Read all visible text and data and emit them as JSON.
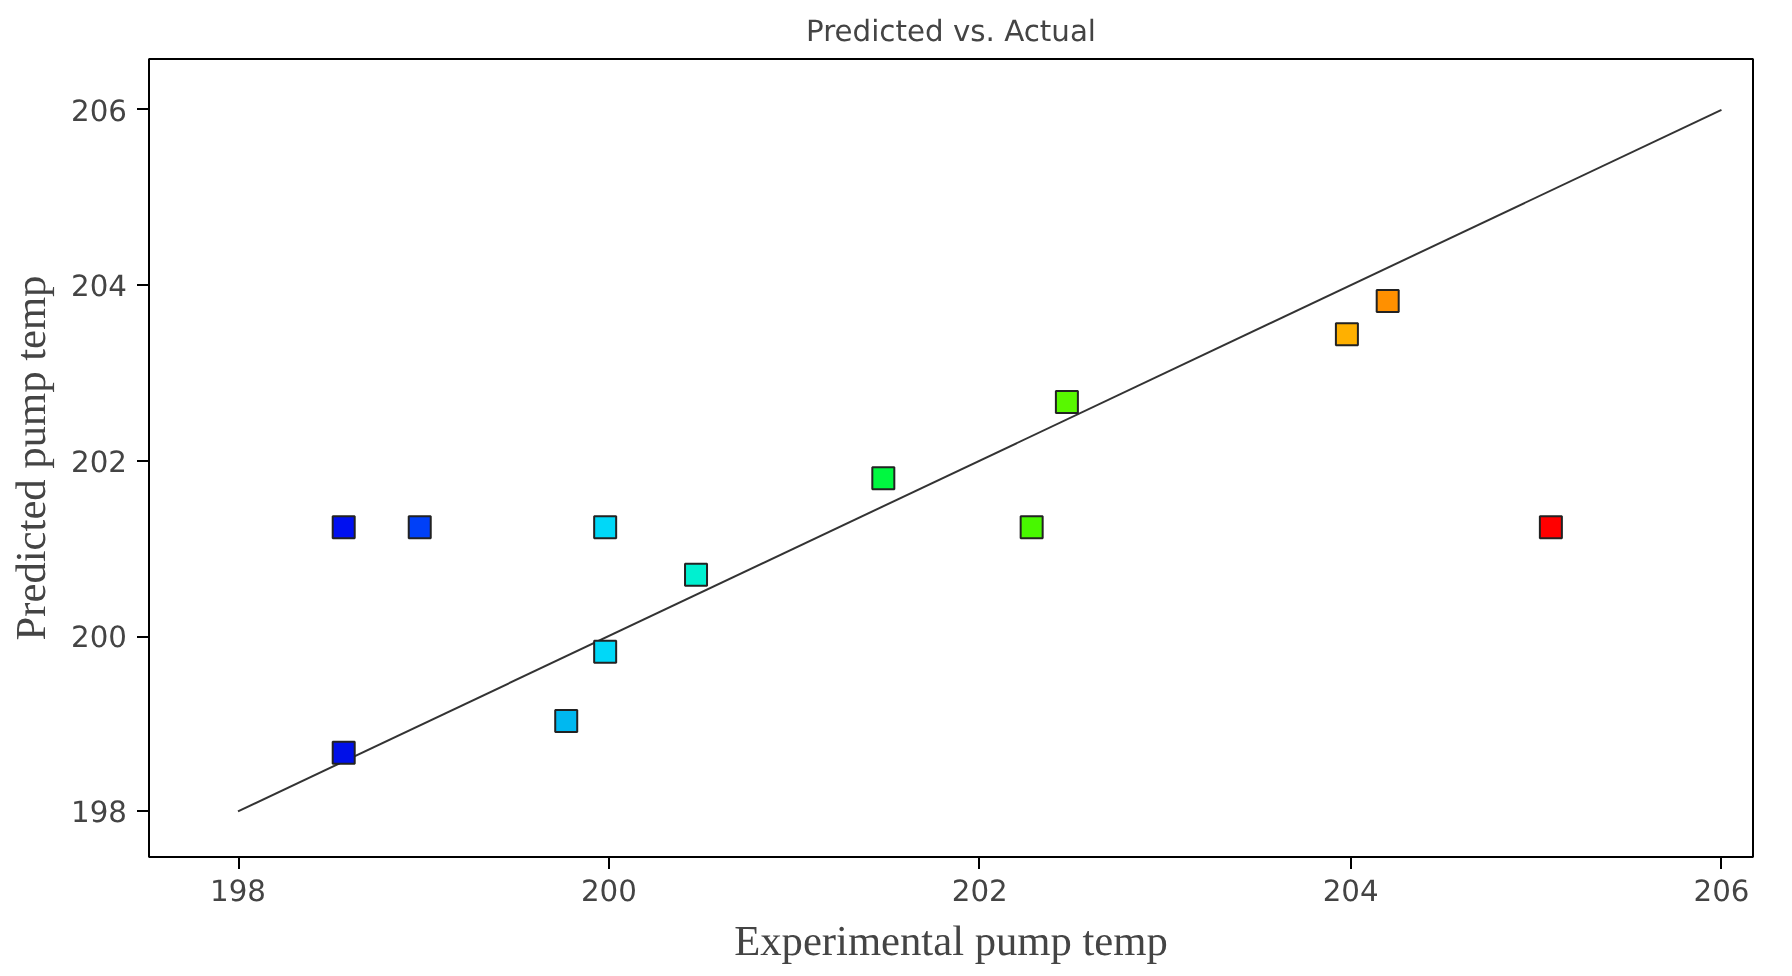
{
  "chart_data": {
    "type": "scatter",
    "title": "Predicted vs. Actual",
    "xlabel": "Experimental pump temp",
    "ylabel": "Predicted pump temp",
    "xlim": [
      197.52,
      206.17
    ],
    "ylim": [
      197.48,
      206.58
    ],
    "xticks": [
      198,
      200,
      202,
      204,
      206
    ],
    "yticks": [
      198,
      200,
      202,
      204,
      206
    ],
    "grid": false,
    "series": [
      {
        "marker": "square",
        "x": [
          198.57,
          198.98,
          199.98,
          200.47,
          199.98,
          199.77,
          198.57,
          201.48,
          202.28,
          202.47,
          203.98,
          204.2,
          205.08
        ],
        "values": [
          201.24,
          201.24,
          201.24,
          200.7,
          199.82,
          199.03,
          198.67,
          201.8,
          201.24,
          202.67,
          203.44,
          203.82,
          201.24
        ],
        "colors": [
          "#0010f0",
          "#0040f8",
          "#00d8f8",
          "#00f0d0",
          "#00d8f8",
          "#00b8f0",
          "#0010e8",
          "#00f840",
          "#48f800",
          "#58f800",
          "#ffb000",
          "#ff9000",
          "#ff0000"
        ]
      },
      {
        "type": "line",
        "x": [
          198,
          206
        ],
        "values": [
          198,
          206
        ],
        "color": "#333333"
      }
    ]
  }
}
